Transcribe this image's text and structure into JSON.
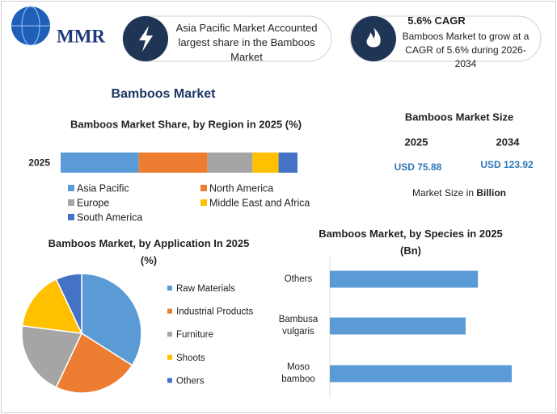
{
  "header": {
    "logo": "MMR",
    "highlights": [
      {
        "text": "Asia Pacific Market Accounted largest share in the Bamboos Market"
      },
      {
        "title": "5.6% CAGR",
        "text": "Bamboos Market to grow at a CAGR of 5.6% during 2026-2034"
      }
    ]
  },
  "title": "Bamboos Market",
  "market_size": {
    "title": "Bamboos Market Size",
    "years": [
      "2025",
      "2034"
    ],
    "values": [
      "USD 75.88",
      "USD 123.92"
    ],
    "note": "Market Size in",
    "unit": "Billion"
  },
  "chart_data": [
    {
      "type": "stacked-bar",
      "title": "Bamboos Market Share, by Region in 2025 (%)",
      "categories": [
        "2025"
      ],
      "series": [
        {
          "name": "Asia Pacific",
          "color": "#5b9bd5",
          "values": [
            33
          ]
        },
        {
          "name": "North America",
          "color": "#ed7d31",
          "values": [
            29
          ]
        },
        {
          "name": "Europe",
          "color": "#a5a5a5",
          "values": [
            19
          ]
        },
        {
          "name": "Middle East and Africa",
          "color": "#ffc000",
          "values": [
            11
          ]
        },
        {
          "name": "South America",
          "color": "#4472c4",
          "values": [
            8
          ]
        }
      ],
      "legend": "bottom"
    },
    {
      "type": "pie",
      "title": "Bamboos Market, by Application In 2025 (%)",
      "categories": [
        "Raw Materials",
        "Industrial Products",
        "Furniture",
        "Shoots",
        "Others"
      ],
      "values": [
        34,
        23,
        20,
        16,
        7
      ],
      "colors": [
        "#5b9bd5",
        "#ed7d31",
        "#a5a5a5",
        "#ffc000",
        "#4472c4"
      ],
      "legend": "right"
    },
    {
      "type": "hbar",
      "title": "Bamboos Market, by Species in 2025 (Bn)",
      "categories": [
        "Others",
        "Bambusa vulgaris",
        "Moso bamboo"
      ],
      "values": [
        24.1,
        22.1,
        29.6
      ],
      "color": "#5b9bd5"
    }
  ]
}
